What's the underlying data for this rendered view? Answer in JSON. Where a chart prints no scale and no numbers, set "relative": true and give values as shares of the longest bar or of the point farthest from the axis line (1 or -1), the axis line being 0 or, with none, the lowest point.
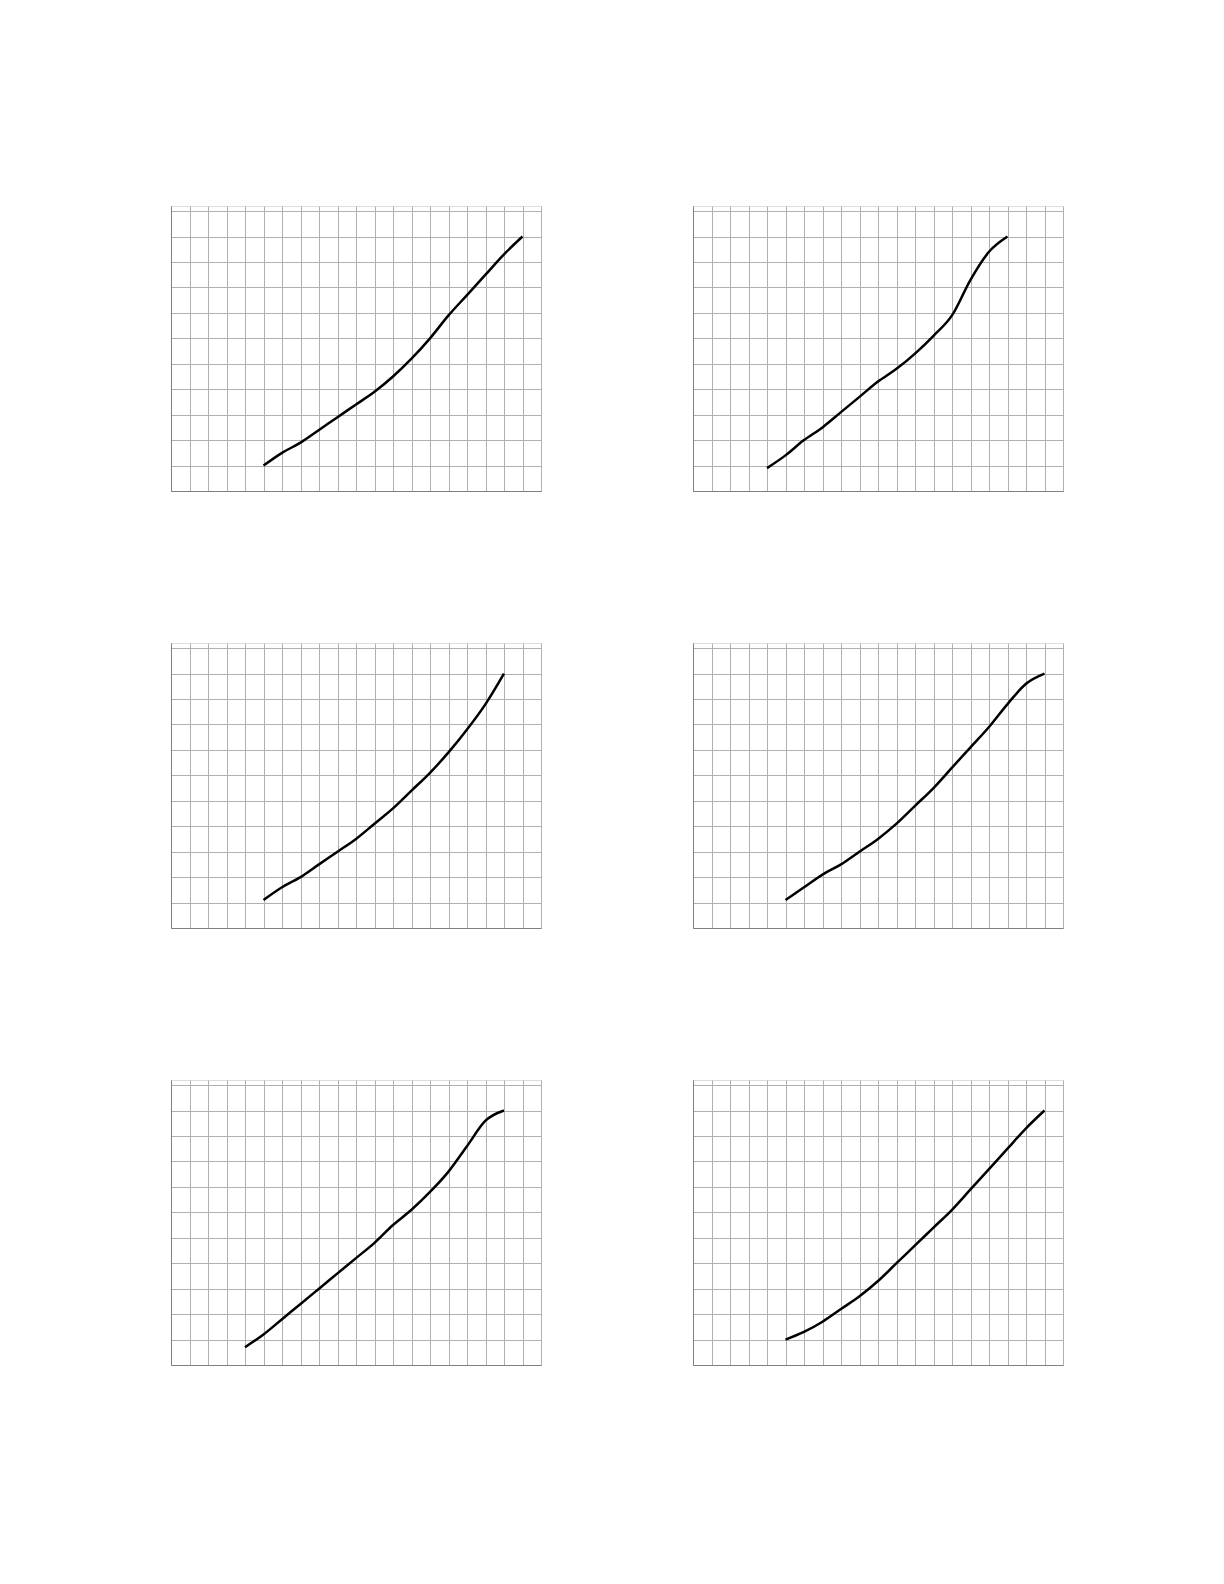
{
  "chart_data": [
    {
      "type": "line",
      "relative": true,
      "grid": true,
      "tick_labels": false,
      "categories": [
        null,
        null,
        null,
        null,
        null,
        null,
        null,
        null,
        null,
        null,
        null,
        null,
        null,
        null,
        null,
        null,
        null,
        null,
        null,
        null,
        null
      ],
      "series": [
        {
          "color": "#000000",
          "values": [
            null,
            null,
            null,
            null,
            null,
            0.1,
            0.15,
            0.19,
            0.24,
            0.29,
            0.34,
            0.39,
            0.45,
            0.52,
            0.6,
            0.69,
            0.77,
            0.85,
            0.93,
            1.0,
            null
          ]
        }
      ]
    },
    {
      "type": "line",
      "relative": true,
      "grid": true,
      "tick_labels": false,
      "categories": [
        null,
        null,
        null,
        null,
        null,
        null,
        null,
        null,
        null,
        null,
        null,
        null,
        null,
        null,
        null,
        null,
        null,
        null,
        null,
        null,
        null
      ],
      "series": [
        {
          "color": "#000000",
          "values": [
            null,
            null,
            null,
            null,
            0.09,
            0.14,
            0.2,
            0.25,
            0.31,
            0.37,
            0.43,
            0.48,
            0.54,
            0.61,
            0.69,
            0.83,
            0.94,
            1.0,
            null,
            null,
            null
          ]
        }
      ]
    },
    {
      "type": "line",
      "relative": true,
      "grid": true,
      "tick_labels": false,
      "categories": [
        null,
        null,
        null,
        null,
        null,
        null,
        null,
        null,
        null,
        null,
        null,
        null,
        null,
        null,
        null,
        null,
        null,
        null,
        null,
        null,
        null
      ],
      "series": [
        {
          "color": "#000000",
          "values": [
            null,
            null,
            null,
            null,
            null,
            0.11,
            0.16,
            0.2,
            0.25,
            0.3,
            0.35,
            0.41,
            0.47,
            0.54,
            0.61,
            0.69,
            0.78,
            0.88,
            1.0,
            null,
            null
          ]
        }
      ]
    },
    {
      "type": "line",
      "relative": true,
      "grid": true,
      "tick_labels": false,
      "categories": [
        null,
        null,
        null,
        null,
        null,
        null,
        null,
        null,
        null,
        null,
        null,
        null,
        null,
        null,
        null,
        null,
        null,
        null,
        null,
        null,
        null
      ],
      "series": [
        {
          "color": "#000000",
          "values": [
            null,
            null,
            null,
            null,
            null,
            0.11,
            0.16,
            0.21,
            0.25,
            0.3,
            0.35,
            0.41,
            0.48,
            0.55,
            0.63,
            0.71,
            0.79,
            0.88,
            0.96,
            1.0,
            null
          ]
        }
      ]
    },
    {
      "type": "line",
      "relative": true,
      "grid": true,
      "tick_labels": false,
      "categories": [
        null,
        null,
        null,
        null,
        null,
        null,
        null,
        null,
        null,
        null,
        null,
        null,
        null,
        null,
        null,
        null,
        null,
        null,
        null,
        null,
        null
      ],
      "series": [
        {
          "color": "#000000",
          "values": [
            null,
            null,
            null,
            null,
            0.07,
            0.12,
            0.18,
            0.24,
            0.3,
            0.36,
            0.42,
            0.48,
            0.55,
            0.61,
            0.68,
            0.76,
            0.86,
            0.96,
            1.0,
            null,
            null
          ]
        }
      ]
    },
    {
      "type": "line",
      "relative": true,
      "grid": true,
      "tick_labels": false,
      "categories": [
        null,
        null,
        null,
        null,
        null,
        null,
        null,
        null,
        null,
        null,
        null,
        null,
        null,
        null,
        null,
        null,
        null,
        null,
        null,
        null,
        null
      ],
      "series": [
        {
          "color": "#000000",
          "values": [
            null,
            null,
            null,
            null,
            null,
            0.1,
            0.13,
            0.17,
            0.22,
            0.27,
            0.33,
            0.4,
            0.47,
            0.54,
            0.61,
            0.69,
            0.77,
            0.85,
            0.93,
            1.0,
            null
          ]
        }
      ]
    }
  ]
}
